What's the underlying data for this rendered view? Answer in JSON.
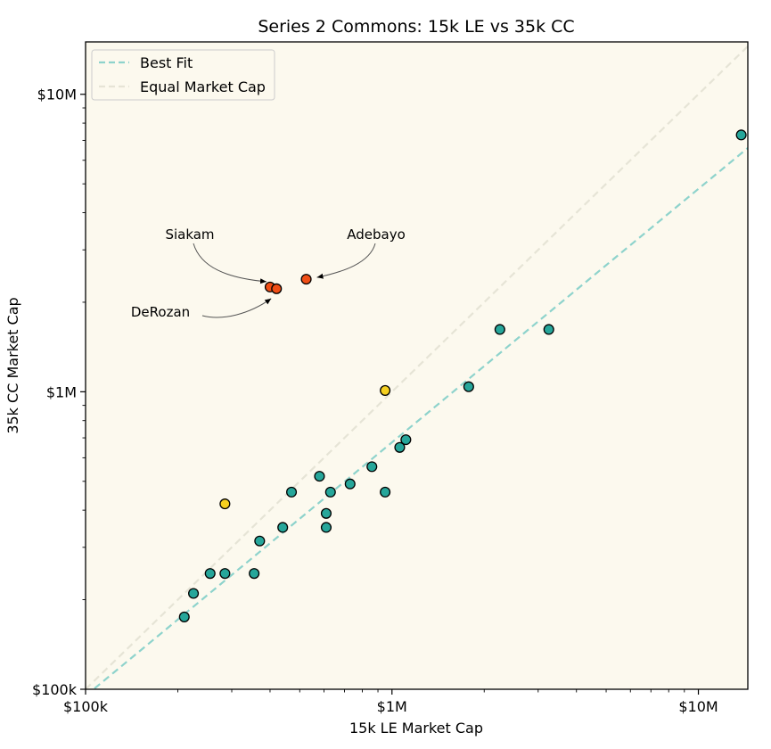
{
  "chart_data": {
    "type": "scatter",
    "title": "Series 2 Commons: 15k LE vs 35k CC",
    "xlabel": "15k LE Market Cap",
    "ylabel": "35k CC Market Cap",
    "x_scale": "log",
    "y_scale": "log",
    "xlim": [
      100000,
      14500000
    ],
    "ylim": [
      100000,
      15000000
    ],
    "x_ticks": [
      {
        "value": 100000,
        "label": "$100k"
      },
      {
        "value": 1000000,
        "label": "$1M"
      },
      {
        "value": 10000000,
        "label": "$10M"
      }
    ],
    "y_ticks": [
      {
        "value": 100000,
        "label": "$100k"
      },
      {
        "value": 1000000,
        "label": "$1M"
      },
      {
        "value": 10000000,
        "label": "$10M"
      }
    ],
    "legend": {
      "placement": "top-left",
      "entries": [
        {
          "label": "Best Fit",
          "color": "#8ed3cc",
          "style": "dashed"
        },
        {
          "label": "Equal Market Cap",
          "color": "#e6e4d6",
          "style": "dashed"
        }
      ]
    },
    "colors": {
      "background": "#fcf9ee",
      "teal": "#26a69a",
      "yellow": "#f5d020",
      "orange": "#f04e16",
      "best_fit": "#8ed3cc",
      "equal_line": "#e6e4d6"
    },
    "best_fit_line": {
      "x": [
        100000,
        14500000
      ],
      "y": [
        95000,
        6600000
      ]
    },
    "equal_line": {
      "x": [
        100000,
        14500000
      ],
      "y": [
        100000,
        14500000
      ]
    },
    "points": [
      {
        "x": 13800000,
        "y": 7300000,
        "group": "teal"
      },
      {
        "x": 3250000,
        "y": 1620000,
        "group": "teal"
      },
      {
        "x": 2250000,
        "y": 1620000,
        "group": "teal"
      },
      {
        "x": 1780000,
        "y": 1040000,
        "group": "teal"
      },
      {
        "x": 1110000,
        "y": 690000,
        "group": "teal"
      },
      {
        "x": 1060000,
        "y": 650000,
        "group": "teal"
      },
      {
        "x": 950000,
        "y": 1010000,
        "group": "yellow"
      },
      {
        "x": 860000,
        "y": 560000,
        "group": "teal"
      },
      {
        "x": 950000,
        "y": 460000,
        "group": "teal"
      },
      {
        "x": 730000,
        "y": 490000,
        "group": "teal"
      },
      {
        "x": 580000,
        "y": 520000,
        "group": "teal"
      },
      {
        "x": 630000,
        "y": 460000,
        "group": "teal"
      },
      {
        "x": 610000,
        "y": 390000,
        "group": "teal"
      },
      {
        "x": 610000,
        "y": 350000,
        "group": "teal"
      },
      {
        "x": 470000,
        "y": 460000,
        "group": "teal"
      },
      {
        "x": 440000,
        "y": 350000,
        "group": "teal"
      },
      {
        "x": 370000,
        "y": 315000,
        "group": "teal"
      },
      {
        "x": 355000,
        "y": 245000,
        "group": "teal"
      },
      {
        "x": 285000,
        "y": 420000,
        "group": "yellow"
      },
      {
        "x": 285000,
        "y": 245000,
        "group": "teal"
      },
      {
        "x": 255000,
        "y": 245000,
        "group": "teal"
      },
      {
        "x": 225000,
        "y": 210000,
        "group": "teal"
      },
      {
        "x": 210000,
        "y": 175000,
        "group": "teal"
      },
      {
        "x": 400000,
        "y": 2250000,
        "group": "orange",
        "label": "Siakam"
      },
      {
        "x": 420000,
        "y": 2220000,
        "group": "orange",
        "label": "DeRozan"
      },
      {
        "x": 525000,
        "y": 2390000,
        "group": "orange",
        "label": "Adebayo"
      }
    ],
    "annotations": [
      {
        "text": "Siakam",
        "for": "Siakam"
      },
      {
        "text": "DeRozan",
        "for": "DeRozan"
      },
      {
        "text": "Adebayo",
        "for": "Adebayo"
      }
    ]
  }
}
